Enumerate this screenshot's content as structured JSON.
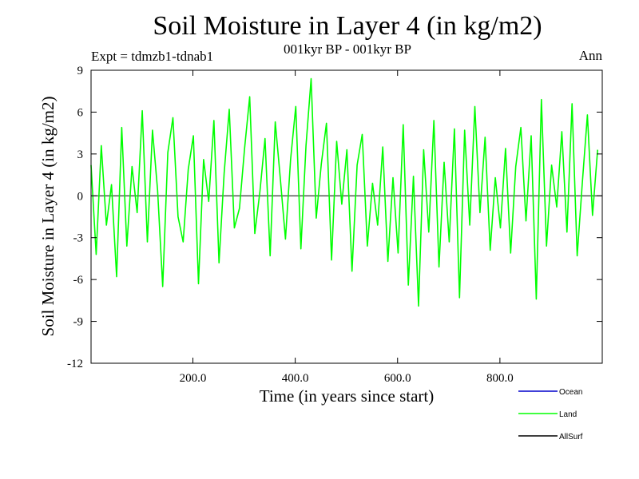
{
  "header": {
    "title": "Soil Moisture in Layer 4 (in kg/m2)",
    "subtitle": "001kyr BP - 001kyr BP",
    "experiment": "Expt = tdmzb1-tdnab1",
    "period": "Ann"
  },
  "chart_data": {
    "type": "line",
    "title": "Soil Moisture in Layer 4 (in kg/m2)",
    "xlabel": "Time (in years since start)",
    "ylabel": "Soil Moisture in Layer 4 (in kg/m2)",
    "xlim": [
      1,
      1000
    ],
    "ylim": [
      -12,
      9
    ],
    "xticks": [
      200,
      400,
      600,
      800
    ],
    "xtick_labels": [
      "200.0",
      "400.0",
      "600.0",
      "800.0"
    ],
    "yticks": [
      9,
      6,
      3,
      0,
      -3,
      -6,
      -9,
      -12
    ],
    "ytick_labels": [
      "9",
      "6",
      "3",
      "0",
      "-3",
      "-6",
      "-9",
      "-12"
    ],
    "reference_line": 0,
    "grid": false,
    "legend_position": "bottom-right",
    "series": [
      {
        "name": "Ocean",
        "color": "#0000cc",
        "values": []
      },
      {
        "name": "Land",
        "color": "#00ff00",
        "x_start": 1,
        "x_step": 10,
        "values": [
          2.2,
          -4.2,
          3.6,
          -2.1,
          0.8,
          -5.8,
          4.9,
          -3.6,
          2.1,
          -1.2,
          6.1,
          -3.3,
          4.7,
          0.4,
          -6.5,
          3.1,
          5.6,
          -1.5,
          -3.3,
          1.9,
          4.3,
          -6.3,
          2.6,
          -0.4,
          5.4,
          -4.8,
          1.6,
          6.2,
          -2.3,
          -0.9,
          3.4,
          7.1,
          -2.7,
          0.3,
          4.1,
          -4.3,
          5.3,
          1.2,
          -3.1,
          2.6,
          6.4,
          -3.8,
          3.6,
          8.4,
          -1.6,
          2.3,
          5.2,
          -4.6,
          3.9,
          -0.6,
          3.3,
          -5.4,
          2.2,
          4.4,
          -3.6,
          0.9,
          -2.1,
          3.5,
          -4.7,
          1.3,
          -4.1,
          5.1,
          -6.4,
          1.4,
          -7.9,
          3.3,
          -2.6,
          5.4,
          -5.1,
          2.4,
          -3.3,
          4.8,
          -7.3,
          4.7,
          -2.1,
          6.4,
          -1.2,
          4.2,
          -3.9,
          1.3,
          -2.3,
          3.4,
          -4.1,
          2.1,
          4.9,
          -1.8,
          4.3,
          -7.4,
          6.9,
          -3.6,
          2.2,
          -0.8,
          4.6,
          -2.6,
          6.6,
          -4.3,
          0.9,
          5.8,
          -1.4,
          3.3
        ]
      },
      {
        "name": "AllSurf",
        "color": "#000000",
        "values": []
      }
    ]
  }
}
